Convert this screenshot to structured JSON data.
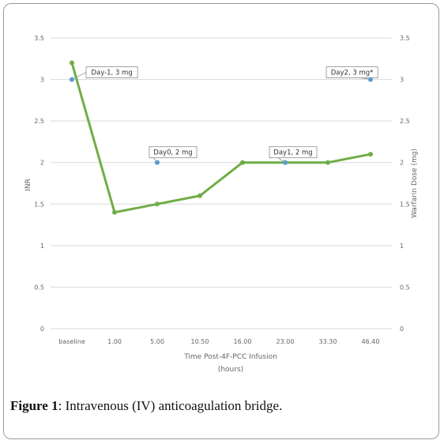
{
  "chart_data": {
    "type": "line",
    "categories": [
      "baseline",
      "1.00",
      "5.00",
      "10.50",
      "16.00",
      "23.00",
      "33.30",
      "46.40"
    ],
    "series": [
      {
        "values": [
          3.2,
          1.4,
          1.5,
          1.6,
          2.0,
          2.0,
          2.0,
          2.1
        ],
        "color": "#70ad47",
        "axis": "left"
      },
      {
        "values": [
          3,
          null,
          2,
          null,
          null,
          2,
          null,
          3
        ],
        "color": "#5b9bd5",
        "axis": "right",
        "labels": [
          "Day-1, 3 mg",
          null,
          "Day0, 2 mg",
          null,
          null,
          "Day1, 2 mg",
          null,
          "Day2, 3 mg*"
        ]
      }
    ],
    "xlabel": "Time Post-4F-PCC Infusion (hours)",
    "ylabel": "INR",
    "y2label": "Warfarin Dose (mg)",
    "ylim": [
      0,
      3.5
    ],
    "y2lim": [
      0,
      3.5
    ],
    "yticks": [
      "0",
      "0.5",
      "1",
      "1.5",
      "2",
      "2.5",
      "3",
      "3.5"
    ],
    "y2ticks": [
      "0",
      "0.5",
      "1",
      "1.5",
      "2",
      "2.5",
      "3",
      "3.5"
    ],
    "grid": true,
    "gridColor": "#d9d9d9"
  },
  "caption": {
    "label": "Figure 1",
    "text": ": Intravenous (IV) anticoagulation bridge."
  }
}
